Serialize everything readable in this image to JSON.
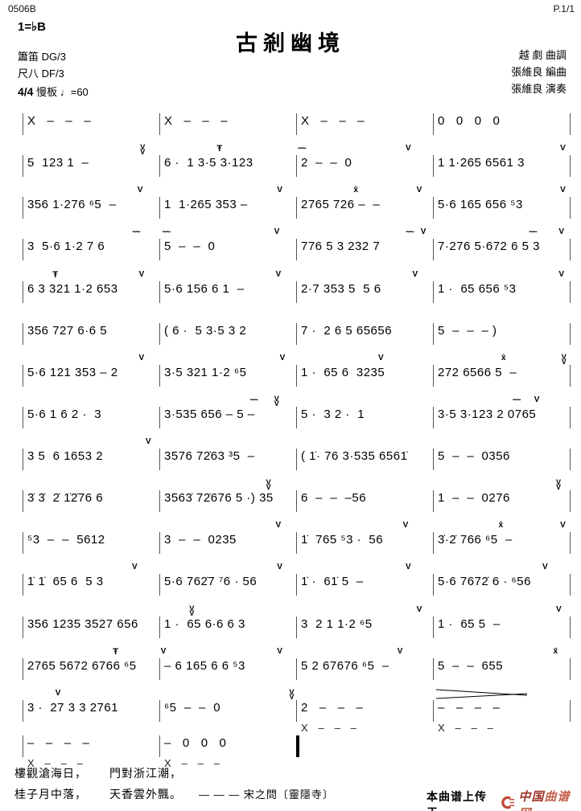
{
  "header": {
    "catalog_no": "0506B",
    "page_no": "P.1/1",
    "key_signature": "1=♭B",
    "title": "古剎幽境",
    "instrument_1": "簫笛 DG/3",
    "instrument_2": "尺八 DF/3",
    "time_signature": "4/4",
    "tempo_name": "慢板",
    "quarter_note_icon": "♩",
    "tempo_value": "=60",
    "credit_1": "越 劇 曲調",
    "credit_2": "張維良 編曲",
    "credit_3": "張維良 演奏"
  },
  "score": {
    "rows": [
      {
        "m": [
          {
            "n": "X   -   -   -"
          },
          {
            "n": "X   -   -   -"
          },
          {
            "n": "X   -   -   -"
          },
          {
            "n": "0   0   0   0"
          }
        ]
      },
      {
        "m": [
          {
            "n": "5  123 1  -",
            "k": [
              {
                "g": "VV",
                "x": 0.86
              }
            ]
          },
          {
            "n": "6 ·  1 3·5 3·123",
            "k": [
              {
                "g": "Ŧ",
                "x": 0.42
              }
            ]
          },
          {
            "n": "2  -  -  0",
            "k": [
              {
                "g": "~~",
                "x": 0.01
              },
              {
                "g": "V",
                "x": 0.8
              }
            ]
          },
          {
            "n": "1 1·265 6561 3",
            "k": [
              {
                "g": "V",
                "x": 0.93
              }
            ]
          }
        ]
      },
      {
        "m": [
          {
            "n": "356 1·276 ⁶5  -",
            "k": [
              {
                "g": "V",
                "x": 0.84
              }
            ]
          },
          {
            "n": "1  1·265 353 -",
            "k": [
              {
                "g": "V",
                "x": 0.86
              }
            ]
          },
          {
            "n": "2765 726 -  -",
            "k": [
              {
                "g": "x̄",
                "x": 0.42
              },
              {
                "g": "V",
                "x": 0.88
              }
            ]
          },
          {
            "n": "5·6 165 656 ⁵3",
            "k": [
              {
                "g": "V",
                "x": 0.93
              }
            ]
          }
        ]
      },
      {
        "m": [
          {
            "n": "3  5·6 1·2 7 6",
            "k": [
              {
                "g": "~~",
                "x": 0.8
              }
            ]
          },
          {
            "n": "5  -  -  0",
            "k": [
              {
                "g": "~~",
                "x": 0.02
              },
              {
                "g": "V",
                "x": 0.84
              }
            ]
          },
          {
            "n": "776 5 3 232 7",
            "k": [
              {
                "g": "~~",
                "x": 0.8
              },
              {
                "g": "V",
                "x": 0.91
              }
            ]
          },
          {
            "n": "7·276 5·672 6 5 3",
            "k": [
              {
                "g": "~~",
                "x": 0.7
              },
              {
                "g": "V",
                "x": 0.92
              }
            ]
          }
        ]
      },
      {
        "m": [
          {
            "n": "6 3 321 1·2 653",
            "k": [
              {
                "g": "Ŧ",
                "x": 0.22
              },
              {
                "g": "V",
                "x": 0.85
              }
            ]
          },
          {
            "n": "5·6 156 6 1  -",
            "k": [
              {
                "g": "V",
                "x": 0.85
              }
            ]
          },
          {
            "n": "2·7 353 5  5 6",
            "k": [
              {
                "g": "V",
                "x": 0.85
              }
            ]
          },
          {
            "n": "1 ·  65 656 ⁵3",
            "k": [
              {
                "g": "V",
                "x": 0.92
              }
            ]
          }
        ]
      },
      {
        "m": [
          {
            "n": "356 727 6·6 5"
          },
          {
            "n": "( 6 ·  5 3·5 3 2"
          },
          {
            "n": "7 ·  2 6 5 65656"
          },
          {
            "n": "5  -  -  - )"
          }
        ]
      },
      {
        "m": [
          {
            "n": "5·6 121 353 - 2",
            "k": [
              {
                "g": "V",
                "x": 0.85
              }
            ]
          },
          {
            "n": "3·5 321 1·2 ⁶5",
            "k": [
              {
                "g": "V",
                "x": 0.88
              }
            ]
          },
          {
            "n": "1 ·  65 6  3235",
            "k": [
              {
                "g": "V",
                "x": 0.6
              }
            ]
          },
          {
            "n": "272 6566 5  -",
            "k": [
              {
                "g": "x̄",
                "x": 0.5
              },
              {
                "g": "VV",
                "x": 0.94
              }
            ]
          }
        ]
      },
      {
        "m": [
          {
            "n": "5·6 1 6 2 ·  3"
          },
          {
            "n": "3·535 656 - 5 -",
            "k": [
              {
                "g": "~~",
                "x": 0.66
              },
              {
                "g": "VV",
                "x": 0.84
              }
            ]
          },
          {
            "n": "5 ·  3 2 ·  1"
          },
          {
            "n": "3·5 3·123 2 0765",
            "k": [
              {
                "g": "~~",
                "x": 0.58
              },
              {
                "g": "V",
                "x": 0.74
              }
            ]
          }
        ]
      },
      {
        "m": [
          {
            "n": "3 5  6 1653 2",
            "k": [
              {
                "g": "V",
                "x": 0.9
              }
            ]
          },
          {
            "n": "3576 72̇63 ³5  -"
          },
          {
            "n": "( 1̇· 76 3·535 6561̇"
          },
          {
            "n": "5  -  -  0356"
          }
        ]
      },
      {
        "m": [
          {
            "n": "3̇ 3̇  2̇ 1̇2̇76 6"
          },
          {
            "n": "3563̇ 72̇676 5 ·) 35",
            "k": [
              {
                "g": "VV",
                "x": 0.78
              }
            ]
          },
          {
            "n": "6  -  -  -56"
          },
          {
            "n": "1  -  -  0276",
            "k": [
              {
                "g": "VV",
                "x": 0.9
              }
            ]
          }
        ]
      },
      {
        "m": [
          {
            "n": "⁵3  -  -  5612"
          },
          {
            "n": "3  -  -  0235",
            "k": [
              {
                "g": "V",
                "x": 0.85
              }
            ]
          },
          {
            "n": "1̇  765 ⁵3 ·  56",
            "k": [
              {
                "g": "V",
                "x": 0.78
              }
            ]
          },
          {
            "n": "3̇·2̇ 766 ⁶5  -",
            "k": [
              {
                "g": "x̄",
                "x": 0.48
              },
              {
                "g": "V",
                "x": 0.93
              }
            ]
          }
        ]
      },
      {
        "m": [
          {
            "n": "1̇ 1̇  65 6  5 3",
            "k": [
              {
                "g": "V",
                "x": 0.8
              }
            ]
          },
          {
            "n": "5·6 762̇7 ⁷6 · 56",
            "k": [
              {
                "g": "V",
                "x": 0.86
              }
            ]
          },
          {
            "n": "1̇ ·  61̇ 5  -",
            "k": [
              {
                "g": "V",
                "x": 0.8
              }
            ]
          },
          {
            "n": "5·6 7672̇ 6 · ⁶56",
            "k": [
              {
                "g": "V",
                "x": 0.8
              }
            ]
          }
        ]
      },
      {
        "m": [
          {
            "n": "356 1235 3527 656"
          },
          {
            "n": "1 ·  65 6·6 6 3",
            "k": [
              {
                "g": "VV",
                "x": 0.22
              }
            ]
          },
          {
            "n": "3  2 1 1·2 ⁶5",
            "k": [
              {
                "g": "V",
                "x": 0.88
              }
            ]
          },
          {
            "n": "1 ·  65 5  -",
            "k": [
              {
                "g": "V",
                "x": 0.9
              }
            ]
          }
        ]
      },
      {
        "m": [
          {
            "n": "2765 5672 6766 ⁶5",
            "k": [
              {
                "g": "Ŧ",
                "x": 0.66
              }
            ]
          },
          {
            "n": "- 6 165 6 6 ⁵3",
            "k": [
              {
                "g": "V",
                "x": 0.01
              },
              {
                "g": "V",
                "x": 0.86
              }
            ]
          },
          {
            "n": "5 2 67676 ⁶5  -",
            "k": [
              {
                "g": "V",
                "x": 0.74
              }
            ]
          },
          {
            "n": "5  -  -  655",
            "k": [
              {
                "g": "x̄",
                "x": 0.88
              }
            ]
          }
        ]
      },
      {
        "m": [
          {
            "n": "3 ·  27 3 3 2761",
            "k": [
              {
                "g": "V",
                "x": 0.24
              }
            ]
          },
          {
            "n": "⁶5  -  -  0",
            "k": [
              {
                "g": "VV",
                "x": 0.95
              }
            ]
          },
          {
            "n": "2   -   -   -",
            "sub": "X   -   -   -"
          },
          {
            "n": "-   -   -   -",
            "sub": "X   -   -   -",
            "hairpin": true
          }
        ]
      },
      {
        "m": [
          {
            "n": "-   -   -   -",
            "sub": "X   -   -   -"
          },
          {
            "n": "-   0   0   0",
            "sub": "X   -   -   -"
          }
        ],
        "end": "final"
      }
    ]
  },
  "footer": {
    "lyrics": {
      "line1a": "樓觀滄海日，",
      "line1b": "門對浙江潮，",
      "line2a": "桂子月中落，",
      "line2b": "天香雲外飄。",
      "attribution": "— — — 宋之問〔靈隱寺〕"
    },
    "credit": {
      "label": "本曲谱上传于",
      "site_part1": "中国",
      "site_part2": "曲谱网",
      "logo_color": "#bf4a38",
      "site1_color": "#9e3527",
      "site2_color": "#c4604a"
    }
  }
}
